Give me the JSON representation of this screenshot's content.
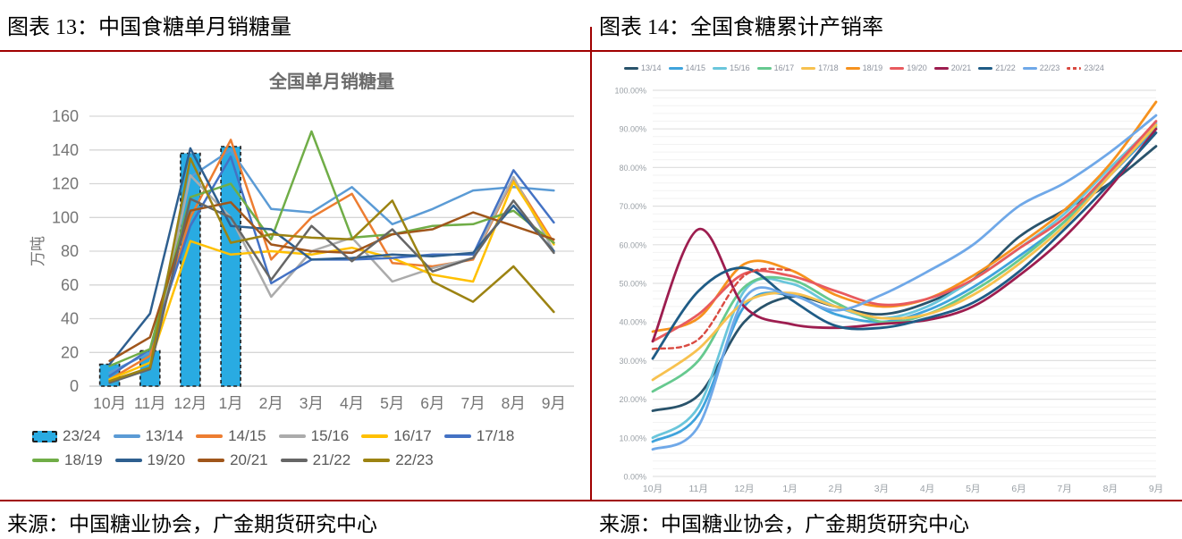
{
  "page": {
    "accent_rule_color": "#A00000",
    "background": "#ffffff"
  },
  "figures": [
    {
      "caption": "图表 13：中国食糖单月销糖量",
      "source": "来源：中国糖业协会，广金期货研究中心"
    },
    {
      "caption": "图表 14：全国食糖累计产销率",
      "source": "来源：中国糖业协会，广金期货研究中心"
    }
  ],
  "chart_data": [
    {
      "type": "bar",
      "subtype": "bar+line combo, straight segments",
      "title": "全国单月销糖量",
      "xlabel": "",
      "ylabel": "万吨",
      "categories": [
        "10月",
        "11月",
        "12月",
        "1月",
        "2月",
        "3月",
        "4月",
        "5月",
        "6月",
        "7月",
        "8月",
        "9月"
      ],
      "ylim": [
        0,
        160
      ],
      "ytick_step": 20,
      "grid": "horizontal",
      "legend_position": "bottom",
      "series": [
        {
          "name": "23/24",
          "kind": "bar",
          "color": "#29ABE2",
          "border": "#1f1f1f",
          "values": [
            13,
            21,
            138,
            142
          ]
        },
        {
          "name": "13/14",
          "kind": "line",
          "color": "#5B9BD5",
          "values": [
            8,
            20,
            124,
            140,
            105,
            103,
            118,
            96,
            105,
            116,
            118,
            116
          ]
        },
        {
          "name": "14/15",
          "kind": "line",
          "color": "#ED7D31",
          "values": [
            4,
            18,
            100,
            146,
            75,
            100,
            114,
            73,
            71,
            75,
            123,
            85
          ]
        },
        {
          "name": "15/16",
          "kind": "line",
          "color": "#ABABAB",
          "values": [
            3,
            10,
            125,
            100,
            53,
            80,
            88,
            62,
            70,
            76,
            124,
            80
          ]
        },
        {
          "name": "16/17",
          "kind": "line",
          "color": "#FFC000",
          "values": [
            4,
            14,
            86,
            78,
            80,
            78,
            82,
            76,
            66,
            62,
            121,
            84
          ]
        },
        {
          "name": "17/18",
          "kind": "line",
          "color": "#4472C4",
          "values": [
            6,
            22,
            95,
            136,
            61,
            75,
            75,
            76,
            78,
            78,
            128,
            97
          ]
        },
        {
          "name": "18/19",
          "kind": "line",
          "color": "#70AD47",
          "values": [
            12,
            22,
            112,
            120,
            87,
            151,
            88,
            90,
            95,
            96,
            104,
            85
          ]
        },
        {
          "name": "19/20",
          "kind": "line",
          "color": "#2E5F8F",
          "values": [
            13,
            43,
            141,
            95,
            93,
            75,
            76,
            78,
            77,
            79,
            107,
            80
          ]
        },
        {
          "name": "20/21",
          "kind": "line",
          "color": "#A0561B",
          "values": [
            15,
            29,
            104,
            109,
            84,
            80,
            79,
            90,
            93,
            103,
            95,
            87
          ]
        },
        {
          "name": "21/22",
          "kind": "line",
          "color": "#666666",
          "values": [
            2,
            10,
            111,
            100,
            63,
            95,
            74,
            93,
            68,
            76,
            110,
            79
          ]
        },
        {
          "name": "22/23",
          "kind": "line",
          "color": "#9C8312",
          "values": [
            3,
            11,
            135,
            85,
            90,
            88,
            87,
            110,
            62,
            50,
            71,
            44
          ]
        }
      ]
    },
    {
      "type": "line",
      "subtype": "smooth spline, cumulative production-sales ratio",
      "title": "",
      "xlabel": "",
      "ylabel": "",
      "categories": [
        "10月",
        "11月",
        "12月",
        "1月",
        "2月",
        "3月",
        "4月",
        "5月",
        "6月",
        "7月",
        "8月",
        "9月"
      ],
      "ylim": [
        0,
        100
      ],
      "ytick_step": 10,
      "minor_step": 2,
      "ytick_format": "percent2",
      "grid": "horizontal",
      "legend_position": "top",
      "series": [
        {
          "name": "13/14",
          "color": "#29536B",
          "values": [
            17,
            21,
            40,
            46.5,
            44,
            42,
            45,
            51,
            62,
            69,
            76,
            85.5
          ]
        },
        {
          "name": "14/15",
          "color": "#3FA3DC",
          "values": [
            9,
            16,
            44,
            47,
            42,
            40,
            43,
            49,
            57,
            66,
            78,
            90
          ]
        },
        {
          "name": "15/16",
          "color": "#6AC6DB",
          "values": [
            10,
            18,
            48,
            50,
            44,
            41,
            44,
            51,
            59,
            68,
            80,
            91.5
          ]
        },
        {
          "name": "16/17",
          "color": "#66C98F",
          "values": [
            22,
            30,
            49,
            51,
            45,
            40,
            42,
            48,
            56,
            66,
            79,
            90.5
          ]
        },
        {
          "name": "17/18",
          "color": "#F7C14F",
          "values": [
            25,
            33,
            45,
            47.5,
            44,
            41,
            42,
            47,
            55,
            65,
            78,
            91
          ]
        },
        {
          "name": "18/19",
          "color": "#F6921E",
          "values": [
            37.5,
            41,
            55,
            53.5,
            47,
            44,
            46,
            52,
            60,
            69,
            81,
            97
          ]
        },
        {
          "name": "19/20",
          "color": "#E85A5E",
          "values": [
            35,
            42,
            52.5,
            52,
            48,
            44.5,
            46,
            51,
            59,
            67,
            79,
            92
          ]
        },
        {
          "name": "20/21",
          "color": "#9D1D4F",
          "values": [
            35,
            64,
            44,
            39.5,
            38.5,
            39.5,
            40.5,
            44,
            52,
            62,
            75,
            90
          ]
        },
        {
          "name": "21/22",
          "color": "#1F5C86",
          "values": [
            30.5,
            48,
            54,
            46,
            39,
            38.5,
            41,
            45,
            53,
            64,
            76,
            89
          ]
        },
        {
          "name": "22/23",
          "color": "#6FA8E8",
          "values": [
            7,
            13,
            46,
            47,
            43,
            47,
            53,
            60,
            70,
            76,
            84,
            93.5
          ]
        },
        {
          "name": "23/24",
          "color": "#D94A41",
          "dashed": true,
          "values": [
            33,
            35.5,
            52,
            53.5
          ]
        }
      ]
    }
  ]
}
